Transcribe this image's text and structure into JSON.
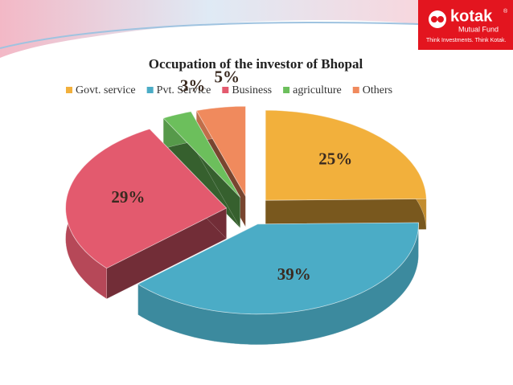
{
  "branding": {
    "name": "kotak",
    "mark": "®",
    "subtitle": "Mutual Fund",
    "tagline": "Think Investments. Think Kotak."
  },
  "chart_data": {
    "type": "pie3d",
    "title": "Occupation of the investor of Bhopal",
    "categories": [
      "Govt. service",
      "Pvt. Service",
      "Business",
      "agriculture",
      "Others"
    ],
    "values": [
      25,
      39,
      29,
      3,
      5
    ],
    "value_labels": [
      "25%",
      "39%",
      "29%",
      "3%",
      "5%"
    ],
    "colors": [
      "#f2b03c",
      "#4bacc6",
      "#e35a6e",
      "#6cbf5c",
      "#f08a5d"
    ],
    "legend": "top"
  }
}
